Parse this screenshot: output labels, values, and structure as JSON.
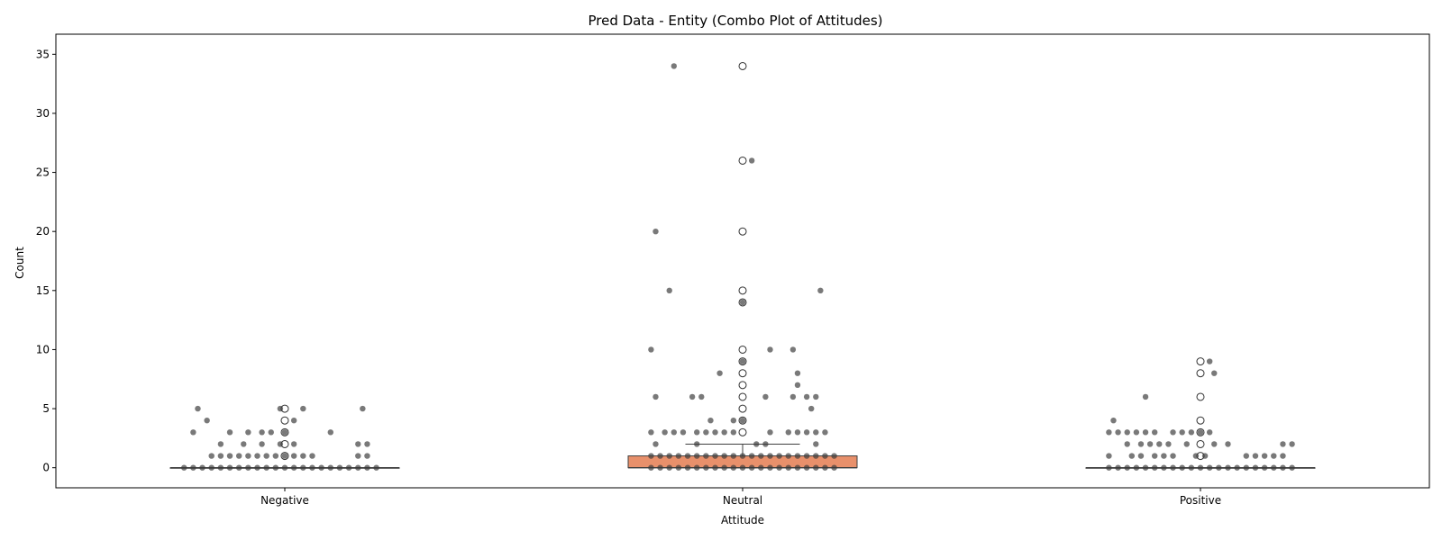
{
  "chart_data": {
    "type": "box",
    "title": "Pred Data - Entity (Combo Plot of Attitudes)",
    "xlabel": "Attitude",
    "ylabel": "Count",
    "categories": [
      "Negative",
      "Neutral",
      "Positive"
    ],
    "ylim": [
      -1.7,
      36.7
    ],
    "yticks": [
      0,
      5,
      10,
      15,
      20,
      25,
      30,
      35
    ],
    "grid": false,
    "box_color": "#e8906b",
    "box_edge_color": "#3f3f3f",
    "strip_color": "#3a3a3a",
    "boxes": [
      {
        "category": "Negative",
        "q1": 0,
        "median": 0,
        "q3": 0,
        "whisker_low": 0,
        "whisker_high": 0,
        "fliers": [
          1,
          2,
          3,
          4,
          5
        ]
      },
      {
        "category": "Neutral",
        "q1": 0,
        "median": 0,
        "q3": 1,
        "whisker_low": 0,
        "whisker_high": 2,
        "fliers": [
          3,
          4,
          5,
          6,
          7,
          8,
          9,
          10,
          14,
          15,
          20,
          26,
          34
        ]
      },
      {
        "category": "Positive",
        "q1": 0,
        "median": 0,
        "q3": 0,
        "whisker_low": 0,
        "whisker_high": 0,
        "fliers": [
          1,
          2,
          3,
          4,
          6,
          8,
          9
        ]
      }
    ],
    "strip_points": [
      {
        "category": "Negative",
        "points": [
          [
            -0.19,
            5
          ],
          [
            -0.01,
            5
          ],
          [
            0.04,
            5
          ],
          [
            0.17,
            5
          ],
          [
            -0.17,
            4
          ],
          [
            0.02,
            4
          ],
          [
            -0.2,
            3
          ],
          [
            -0.12,
            3
          ],
          [
            -0.08,
            3
          ],
          [
            -0.05,
            3
          ],
          [
            -0.03,
            3
          ],
          [
            0.0,
            3
          ],
          [
            0.1,
            3
          ],
          [
            -0.14,
            2
          ],
          [
            -0.09,
            2
          ],
          [
            -0.05,
            2
          ],
          [
            -0.01,
            2
          ],
          [
            0.02,
            2
          ],
          [
            0.16,
            2
          ],
          [
            0.18,
            2
          ],
          [
            -0.16,
            1
          ],
          [
            -0.14,
            1
          ],
          [
            -0.12,
            1
          ],
          [
            -0.1,
            1
          ],
          [
            -0.08,
            1
          ],
          [
            -0.06,
            1
          ],
          [
            -0.04,
            1
          ],
          [
            -0.02,
            1
          ],
          [
            0.0,
            1
          ],
          [
            0.02,
            1
          ],
          [
            0.04,
            1
          ],
          [
            0.06,
            1
          ],
          [
            0.16,
            1
          ],
          [
            0.18,
            1
          ],
          [
            -0.22,
            0
          ],
          [
            -0.2,
            0
          ],
          [
            -0.18,
            0
          ],
          [
            -0.16,
            0
          ],
          [
            -0.14,
            0
          ],
          [
            -0.12,
            0
          ],
          [
            -0.1,
            0
          ],
          [
            -0.08,
            0
          ],
          [
            -0.06,
            0
          ],
          [
            -0.04,
            0
          ],
          [
            -0.02,
            0
          ],
          [
            0.0,
            0
          ],
          [
            0.02,
            0
          ],
          [
            0.04,
            0
          ],
          [
            0.06,
            0
          ],
          [
            0.08,
            0
          ],
          [
            0.1,
            0
          ],
          [
            0.12,
            0
          ],
          [
            0.14,
            0
          ],
          [
            0.16,
            0
          ],
          [
            0.18,
            0
          ],
          [
            0.2,
            0
          ]
        ]
      },
      {
        "category": "Neutral",
        "points": [
          [
            -0.15,
            34
          ],
          [
            0.02,
            26
          ],
          [
            -0.19,
            20
          ],
          [
            -0.16,
            15
          ],
          [
            0.17,
            15
          ],
          [
            0.0,
            14
          ],
          [
            -0.2,
            10
          ],
          [
            0.06,
            10
          ],
          [
            0.11,
            10
          ],
          [
            0.0,
            9
          ],
          [
            -0.05,
            8
          ],
          [
            0.12,
            8
          ],
          [
            0.12,
            7
          ],
          [
            -0.19,
            6
          ],
          [
            -0.11,
            6
          ],
          [
            -0.09,
            6
          ],
          [
            0.05,
            6
          ],
          [
            0.11,
            6
          ],
          [
            0.14,
            6
          ],
          [
            0.16,
            6
          ],
          [
            0.15,
            5
          ],
          [
            -0.02,
            4
          ],
          [
            -0.07,
            4
          ],
          [
            0.0,
            4
          ],
          [
            -0.2,
            3
          ],
          [
            -0.17,
            3
          ],
          [
            -0.15,
            3
          ],
          [
            -0.13,
            3
          ],
          [
            -0.1,
            3
          ],
          [
            -0.08,
            3
          ],
          [
            -0.06,
            3
          ],
          [
            -0.04,
            3
          ],
          [
            -0.02,
            3
          ],
          [
            0.06,
            3
          ],
          [
            0.1,
            3
          ],
          [
            0.12,
            3
          ],
          [
            0.14,
            3
          ],
          [
            0.16,
            3
          ],
          [
            0.18,
            3
          ],
          [
            -0.19,
            2
          ],
          [
            -0.1,
            2
          ],
          [
            0.03,
            2
          ],
          [
            0.05,
            2
          ],
          [
            0.16,
            2
          ],
          [
            -0.2,
            1
          ],
          [
            -0.18,
            1
          ],
          [
            -0.16,
            1
          ],
          [
            -0.14,
            1
          ],
          [
            -0.12,
            1
          ],
          [
            -0.1,
            1
          ],
          [
            -0.08,
            1
          ],
          [
            -0.06,
            1
          ],
          [
            -0.04,
            1
          ],
          [
            -0.02,
            1
          ],
          [
            0.0,
            1
          ],
          [
            0.02,
            1
          ],
          [
            0.04,
            1
          ],
          [
            0.06,
            1
          ],
          [
            0.08,
            1
          ],
          [
            0.1,
            1
          ],
          [
            0.12,
            1
          ],
          [
            0.14,
            1
          ],
          [
            0.16,
            1
          ],
          [
            0.18,
            1
          ],
          [
            0.2,
            1
          ],
          [
            -0.2,
            0
          ],
          [
            -0.18,
            0
          ],
          [
            -0.16,
            0
          ],
          [
            -0.14,
            0
          ],
          [
            -0.12,
            0
          ],
          [
            -0.1,
            0
          ],
          [
            -0.08,
            0
          ],
          [
            -0.06,
            0
          ],
          [
            -0.04,
            0
          ],
          [
            -0.02,
            0
          ],
          [
            0.0,
            0
          ],
          [
            0.02,
            0
          ],
          [
            0.04,
            0
          ],
          [
            0.06,
            0
          ],
          [
            0.08,
            0
          ],
          [
            0.1,
            0
          ],
          [
            0.12,
            0
          ],
          [
            0.14,
            0
          ],
          [
            0.16,
            0
          ],
          [
            0.18,
            0
          ],
          [
            0.2,
            0
          ]
        ]
      },
      {
        "category": "Positive",
        "points": [
          [
            0.02,
            9
          ],
          [
            0.03,
            8
          ],
          [
            -0.12,
            6
          ],
          [
            -0.19,
            4
          ],
          [
            -0.2,
            3
          ],
          [
            -0.18,
            3
          ],
          [
            -0.16,
            3
          ],
          [
            -0.14,
            3
          ],
          [
            -0.12,
            3
          ],
          [
            -0.1,
            3
          ],
          [
            -0.06,
            3
          ],
          [
            -0.04,
            3
          ],
          [
            -0.02,
            3
          ],
          [
            0.0,
            3
          ],
          [
            0.02,
            3
          ],
          [
            -0.16,
            2
          ],
          [
            -0.13,
            2
          ],
          [
            -0.11,
            2
          ],
          [
            -0.09,
            2
          ],
          [
            -0.07,
            2
          ],
          [
            -0.03,
            2
          ],
          [
            0.03,
            2
          ],
          [
            0.06,
            2
          ],
          [
            0.18,
            2
          ],
          [
            0.2,
            2
          ],
          [
            -0.2,
            1
          ],
          [
            -0.15,
            1
          ],
          [
            -0.13,
            1
          ],
          [
            -0.1,
            1
          ],
          [
            -0.08,
            1
          ],
          [
            -0.06,
            1
          ],
          [
            -0.01,
            1
          ],
          [
            0.01,
            1
          ],
          [
            0.1,
            1
          ],
          [
            0.12,
            1
          ],
          [
            0.14,
            1
          ],
          [
            0.16,
            1
          ],
          [
            0.18,
            1
          ],
          [
            -0.2,
            0
          ],
          [
            -0.18,
            0
          ],
          [
            -0.16,
            0
          ],
          [
            -0.14,
            0
          ],
          [
            -0.12,
            0
          ],
          [
            -0.1,
            0
          ],
          [
            -0.08,
            0
          ],
          [
            -0.06,
            0
          ],
          [
            -0.04,
            0
          ],
          [
            -0.02,
            0
          ],
          [
            0.0,
            0
          ],
          [
            0.02,
            0
          ],
          [
            0.04,
            0
          ],
          [
            0.06,
            0
          ],
          [
            0.08,
            0
          ],
          [
            0.1,
            0
          ],
          [
            0.12,
            0
          ],
          [
            0.14,
            0
          ],
          [
            0.16,
            0
          ],
          [
            0.18,
            0
          ],
          [
            0.2,
            0
          ]
        ]
      }
    ]
  }
}
